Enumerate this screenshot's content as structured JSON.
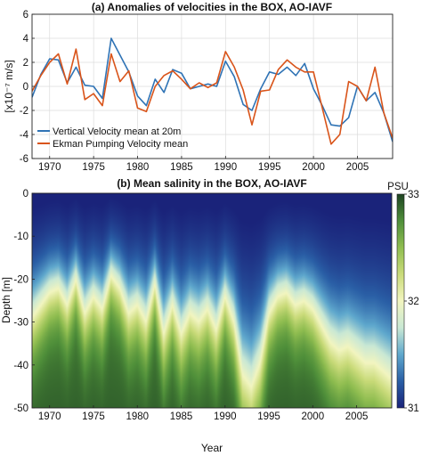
{
  "chart_data": [
    {
      "type": "line",
      "title": "(a) Anomalies of velocities in the BOX, AO-IAVF",
      "ylabel": "[x10⁻⁷ m/s]",
      "xlabel": "",
      "xlim": [
        1968,
        2009
      ],
      "ylim": [
        -6,
        6
      ],
      "x_ticks": [
        1970,
        1975,
        1980,
        1985,
        1990,
        1995,
        2000,
        2005
      ],
      "y_ticks": [
        -6,
        -4,
        -2,
        0,
        2,
        4,
        6
      ],
      "grid": true,
      "legend_position": "bottom-left",
      "colors": {
        "vertical": "#2f73b5",
        "ekman": "#d9541a"
      },
      "x": [
        1968,
        1969,
        1970,
        1971,
        1972,
        1973,
        1974,
        1975,
        1976,
        1977,
        1978,
        1979,
        1980,
        1981,
        1982,
        1983,
        1984,
        1985,
        1986,
        1987,
        1988,
        1989,
        1990,
        1991,
        1992,
        1993,
        1994,
        1995,
        1996,
        1997,
        1998,
        1999,
        2000,
        2001,
        2002,
        2003,
        2004,
        2005,
        2006,
        2007,
        2008,
        2009
      ],
      "series": [
        {
          "name": "Vertical Velocity mean at 20m",
          "values": [
            -0.9,
            1.0,
            2.3,
            2.2,
            0.3,
            1.6,
            0.1,
            0.0,
            -1.0,
            4.0,
            2.6,
            1.2,
            -0.8,
            -1.6,
            0.6,
            -0.5,
            1.4,
            1.1,
            -0.2,
            0.0,
            0.2,
            0.0,
            2.1,
            0.8,
            -1.5,
            -2.0,
            -0.2,
            1.2,
            1.0,
            1.6,
            0.9,
            1.9,
            -0.2,
            -1.6,
            -3.2,
            -3.3,
            -2.6,
            0.0,
            -1.2,
            -0.5,
            -2.2,
            -4.6
          ]
        },
        {
          "name": "Ekman Pumping Velocity mean",
          "values": [
            -0.4,
            0.9,
            2.0,
            2.7,
            0.2,
            3.1,
            -1.1,
            -0.6,
            -1.6,
            2.7,
            0.4,
            1.3,
            -1.8,
            -2.1,
            0.0,
            0.9,
            1.3,
            0.6,
            -0.2,
            0.3,
            -0.1,
            0.3,
            2.9,
            1.6,
            -0.3,
            -3.2,
            -0.4,
            -0.3,
            1.4,
            2.2,
            1.6,
            1.2,
            1.2,
            -1.8,
            -4.8,
            -4.0,
            0.4,
            0.0,
            -1.2,
            1.6,
            -2.2,
            -4.3
          ]
        }
      ]
    },
    {
      "type": "heatmap",
      "title": "(b) Mean salinity in the BOX, AO-IAVF",
      "xlabel": "Year",
      "ylabel": "Depth [m]",
      "xlim": [
        1968,
        2009
      ],
      "ylim": [
        -50,
        0
      ],
      "x_ticks": [
        1970,
        1975,
        1980,
        1985,
        1990,
        1995,
        2000,
        2005
      ],
      "y_ticks": [
        0,
        -10,
        -20,
        -30,
        -40,
        -50
      ],
      "colorbar": {
        "label": "PSU",
        "min": 31,
        "max": 33,
        "ticks": [
          31,
          32,
          33
        ]
      },
      "colormap": [
        "#1a237a",
        "#2a5fa6",
        "#5fa8cd",
        "#c9e8d4",
        "#f2f5c0",
        "#cadb7a",
        "#8fbd50",
        "#4f8f3a",
        "#1e4422"
      ],
      "x": [
        1968,
        1969,
        1970,
        1971,
        1972,
        1973,
        1974,
        1975,
        1976,
        1977,
        1978,
        1979,
        1980,
        1981,
        1982,
        1983,
        1984,
        1985,
        1986,
        1987,
        1988,
        1989,
        1990,
        1991,
        1992,
        1993,
        1994,
        1995,
        1996,
        1997,
        1998,
        1999,
        2000,
        2001,
        2002,
        2003,
        2004,
        2005,
        2006,
        2007,
        2008,
        2009
      ],
      "halocline_depth_m": [
        -29,
        -26,
        -23,
        -22,
        -26,
        -20,
        -28,
        -24,
        -27,
        -19,
        -22,
        -28,
        -26,
        -30,
        -21,
        -33,
        -26,
        -33,
        -28,
        -30,
        -27,
        -32,
        -24,
        -30,
        -43,
        -46,
        -40,
        -28,
        -24,
        -23,
        -26,
        -25,
        -27,
        -31,
        -35,
        -37,
        -36,
        -38,
        -40,
        -40,
        -42,
        -44
      ]
    }
  ]
}
